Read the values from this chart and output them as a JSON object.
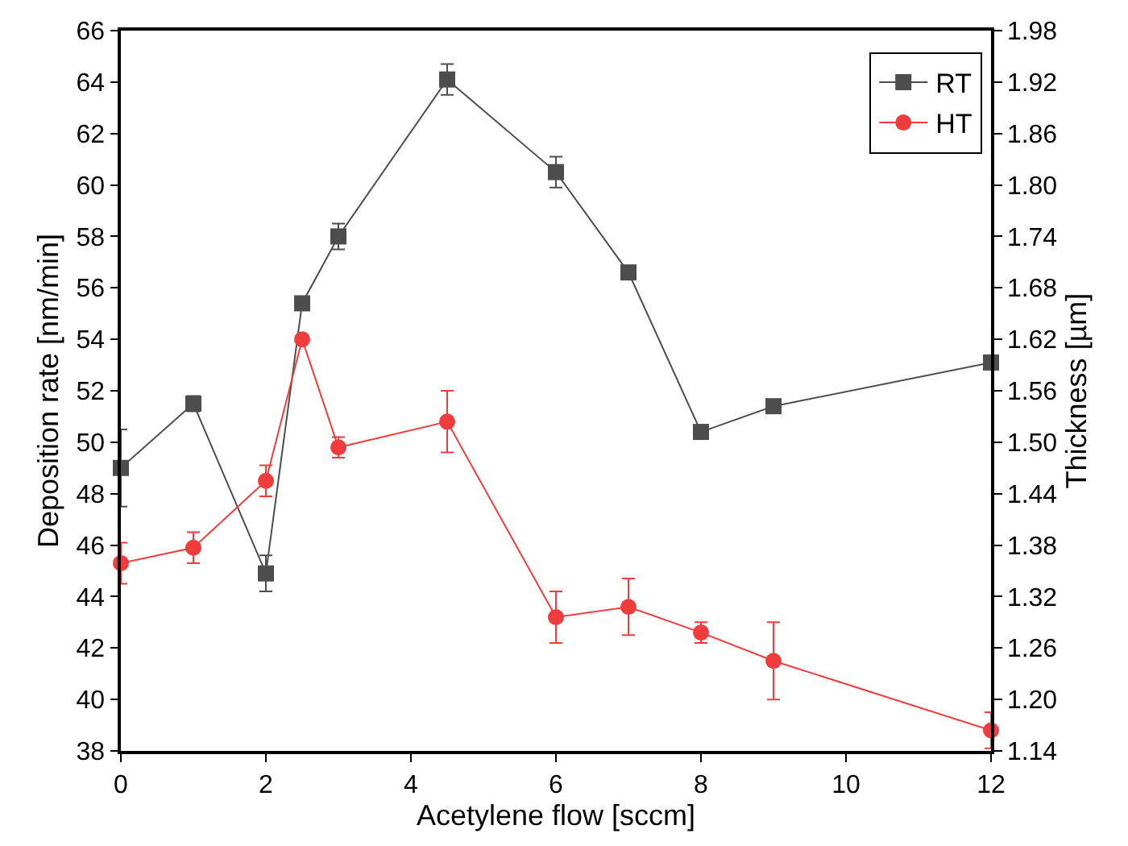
{
  "chart_data": {
    "type": "line",
    "xlabel": "Acetylene flow [sccm]",
    "ylabel": "Deposition rate [nm/min]",
    "y2label": "Thickness [µm]",
    "x": [
      0,
      1,
      2,
      2.5,
      3,
      4.5,
      6,
      7,
      8,
      9,
      12
    ],
    "series": [
      {
        "name": "RT",
        "color": "#4d4d4d",
        "marker": "square",
        "values": [
          49.0,
          51.5,
          44.9,
          55.4,
          58.0,
          64.1,
          60.5,
          56.6,
          50.4,
          51.4,
          53.1
        ],
        "errors": [
          1.5,
          0.3,
          0.7,
          null,
          0.5,
          0.6,
          0.6,
          null,
          null,
          null,
          null
        ]
      },
      {
        "name": "HT",
        "color": "#f03c3c",
        "marker": "circle",
        "values": [
          45.3,
          45.9,
          48.5,
          54.0,
          49.8,
          50.8,
          43.2,
          43.6,
          42.6,
          41.5,
          38.8
        ],
        "errors": [
          0.8,
          0.6,
          0.6,
          null,
          0.4,
          1.2,
          1.0,
          1.1,
          0.4,
          1.5,
          0.7
        ]
      }
    ],
    "xlim": [
      0,
      12
    ],
    "xticks": [
      0,
      2,
      4,
      6,
      8,
      10,
      12
    ],
    "ylim": [
      38,
      66
    ],
    "yticks": [
      38,
      40,
      42,
      44,
      46,
      48,
      50,
      52,
      54,
      56,
      58,
      60,
      62,
      64,
      66
    ],
    "y2lim": [
      1.14,
      1.98
    ],
    "y2ticks": [
      1.14,
      {
        "value": 1.2,
        "label": "1.20"
      },
      1.26,
      1.32,
      1.38,
      1.44,
      {
        "value": 1.5,
        "label": "1.50"
      },
      1.56,
      1.62,
      1.68,
      1.74,
      {
        "value": 1.8,
        "label": "1.80"
      },
      1.86,
      1.92,
      1.98
    ],
    "legend": "top right",
    "line_style": "solid"
  }
}
